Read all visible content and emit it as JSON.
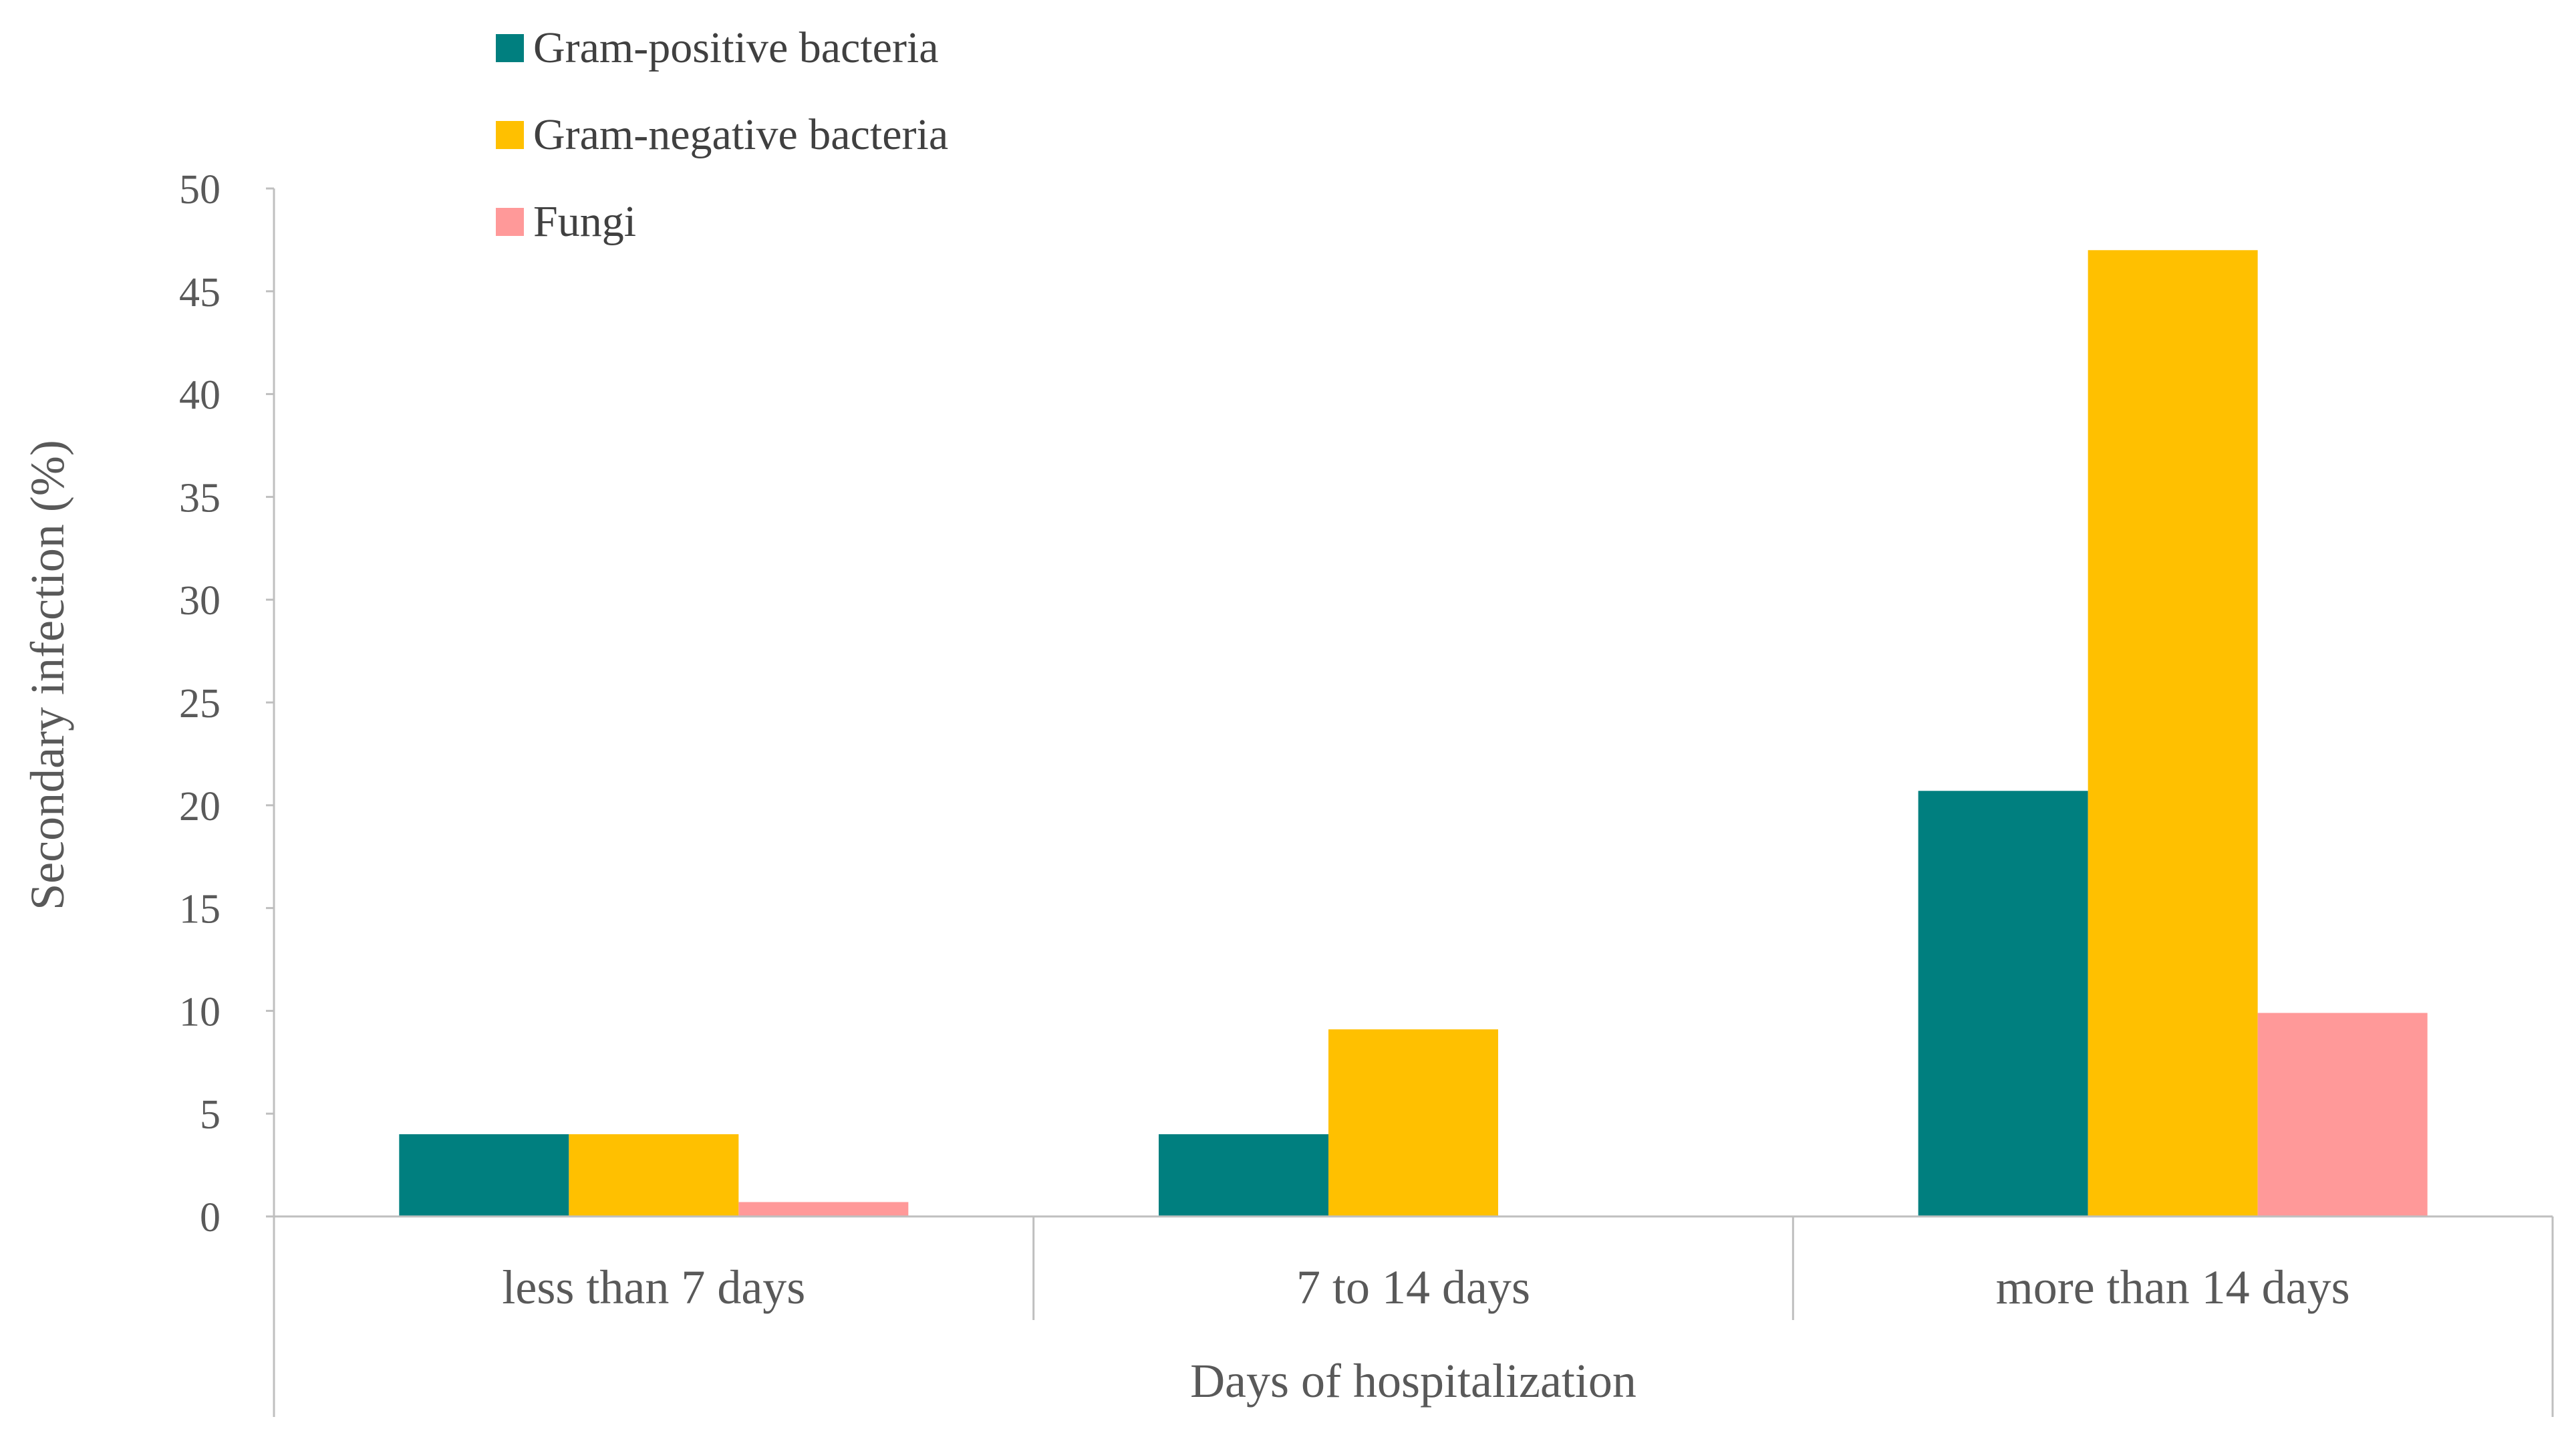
{
  "chart_data": {
    "type": "bar",
    "title": "",
    "xlabel": "Days of hospitalization",
    "ylabel": "Secondary infection (%)",
    "ylim": [
      0,
      50
    ],
    "yticks": [
      0,
      5,
      10,
      15,
      20,
      25,
      30,
      35,
      40,
      45,
      50
    ],
    "grid": false,
    "legend_position": "top-left",
    "categories": [
      "less than 7 days",
      "7  to 14 days",
      "more than 14 days"
    ],
    "series": [
      {
        "name": "Gram-positive bacteria",
        "color": "#007f7f",
        "values": [
          4.0,
          4.0,
          20.7
        ]
      },
      {
        "name": "Gram-negative bacteria",
        "color": "#ffc000",
        "values": [
          4.0,
          9.1,
          47.0
        ]
      },
      {
        "name": "Fungi",
        "color": "#ff9999",
        "values": [
          0.7,
          0,
          9.9
        ]
      }
    ]
  }
}
